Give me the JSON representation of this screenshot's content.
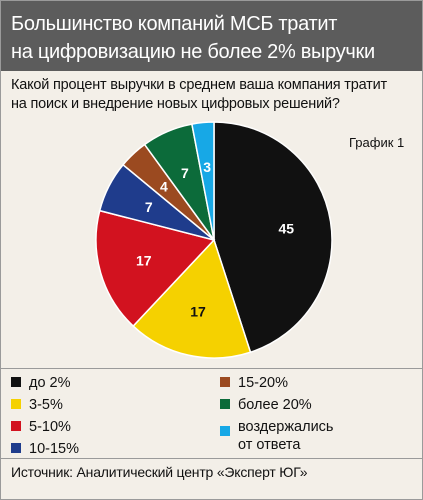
{
  "header": {
    "title_line1": "Большинство компаний МСБ тратит",
    "title_line2": "на цифровизацию не более 2% выручки"
  },
  "question": {
    "line1": "Какой процент выручки в среднем ваша компания тратит",
    "line2": "на поиск и внедрение новых цифровых решений?"
  },
  "chart_label": "График 1",
  "legend": {
    "items": [
      {
        "label": "до 2%",
        "color": "#111111"
      },
      {
        "label": "3-5%",
        "color": "#f5d100"
      },
      {
        "label": "5-10%",
        "color": "#d2121f"
      },
      {
        "label": "10-15%",
        "color": "#1f3c8c"
      },
      {
        "label": "15-20%",
        "color": "#9b4a20"
      },
      {
        "label": "более 20%",
        "color": "#0c6b3a"
      },
      {
        "label_line1": "воздержались",
        "label_line2": "от ответа",
        "color": "#17a8e6"
      }
    ]
  },
  "source": "Источник: Аналитический центр «Эксперт ЮГ»",
  "chart_data": {
    "type": "pie",
    "title": "Большинство компаний МСБ тратит на цифровизацию не более 2% выручки",
    "categories": [
      "до 2%",
      "3-5%",
      "5-10%",
      "10-15%",
      "15-20%",
      "более 20%",
      "воздержались от ответа"
    ],
    "values": [
      45,
      17,
      17,
      7,
      4,
      7,
      3
    ],
    "colors": [
      "#111111",
      "#f5d100",
      "#d2121f",
      "#1f3c8c",
      "#9b4a20",
      "#0c6b3a",
      "#17a8e6"
    ],
    "label_colors": [
      "#ffffff",
      "#111111",
      "#ffffff",
      "#ffffff",
      "#ffffff",
      "#ffffff",
      "#ffffff"
    ],
    "legend_position": "bottom"
  }
}
